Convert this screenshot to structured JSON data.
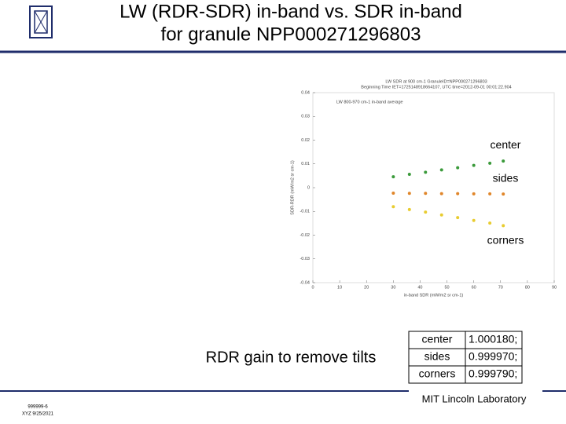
{
  "slide": {
    "title_lines": [
      "LW (RDR-SDR) in-band vs. SDR in-band",
      "for granule NPP000271296803"
    ],
    "caption": "RDR gain to remove tilts",
    "table": {
      "rows": [
        [
          "center",
          "1.000180;"
        ],
        [
          "sides",
          "0.999970;"
        ],
        [
          "corners",
          "0.999790;"
        ]
      ]
    },
    "footer": {
      "lab": "MIT Lincoln Laboratory",
      "code": "999999-6",
      "author_date": "XYZ 9/25/2021"
    }
  },
  "chart_data": {
    "type": "scatter",
    "title_lines": [
      "LW SDR at 900 cm-1 GranuleID=NPP000271296803",
      "Beginning Time IET=1725148918664107, UTC time=2012-09-01 00:01:22.904"
    ],
    "legend": "LW 800-970 cm-1 in-band average",
    "xlabel": "in-band SDR (mW/m2 sr cm-1)",
    "ylabel": "SDR-RDR (mW/m2 sr cm-1)",
    "xlim": [
      0,
      90
    ],
    "xticks": [
      0,
      10,
      20,
      30,
      40,
      50,
      60,
      70,
      80,
      90
    ],
    "ylim": [
      -0.04,
      0.04
    ],
    "yticks": [
      -0.04,
      -0.03,
      -0.02,
      -0.01,
      0,
      0.01,
      0.02,
      0.03,
      0.04
    ],
    "series": [
      {
        "name": "center",
        "color": "#3a9a3a",
        "x": [
          30,
          36,
          42,
          48,
          54,
          60,
          66,
          71
        ],
        "values": [
          0.0046,
          0.0056,
          0.0065,
          0.0075,
          0.0084,
          0.0094,
          0.0103,
          0.0112
        ]
      },
      {
        "name": "sides",
        "color": "#e0862a",
        "x": [
          30,
          36,
          42,
          48,
          54,
          60,
          66,
          71
        ],
        "values": [
          -0.0023,
          -0.0024,
          -0.0024,
          -0.0025,
          -0.0025,
          -0.0026,
          -0.0026,
          -0.0027
        ]
      },
      {
        "name": "corners",
        "color": "#e8cc30",
        "x": [
          30,
          36,
          42,
          48,
          54,
          60,
          66,
          71
        ],
        "values": [
          -0.008,
          -0.0092,
          -0.0103,
          -0.0115,
          -0.0126,
          -0.0138,
          -0.0149,
          -0.016
        ]
      }
    ]
  }
}
